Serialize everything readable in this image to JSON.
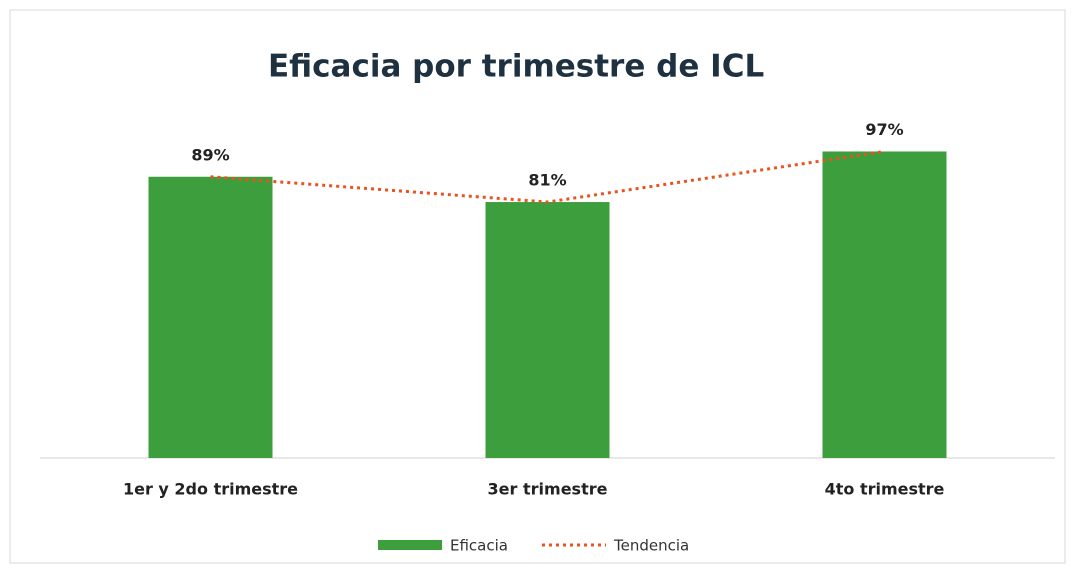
{
  "chart_data": {
    "type": "bar",
    "title": "Eficacia por trimestre de ICL",
    "categories": [
      "1er y 2do trimestre",
      "3er trimestre",
      "4to trimestre"
    ],
    "series": [
      {
        "name": "Eficacia",
        "type": "bar",
        "color": "#3d9e3d",
        "values": [
          89,
          81,
          97
        ],
        "value_labels": [
          "89%",
          "81%",
          "97%"
        ]
      },
      {
        "name": "Tendencia",
        "type": "line",
        "color": "#e8531f",
        "values": [
          89,
          81,
          97
        ]
      }
    ],
    "ylim": [
      0,
      100
    ],
    "legend": "bottom"
  }
}
